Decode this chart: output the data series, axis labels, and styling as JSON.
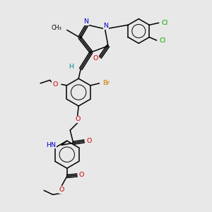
{
  "bg_color": "#e8e8e8",
  "colors": {
    "N": "#0000cc",
    "O": "#cc0000",
    "Cl": "#00aa00",
    "Br": "#cc7700",
    "H": "#008888",
    "C": "#000000"
  }
}
